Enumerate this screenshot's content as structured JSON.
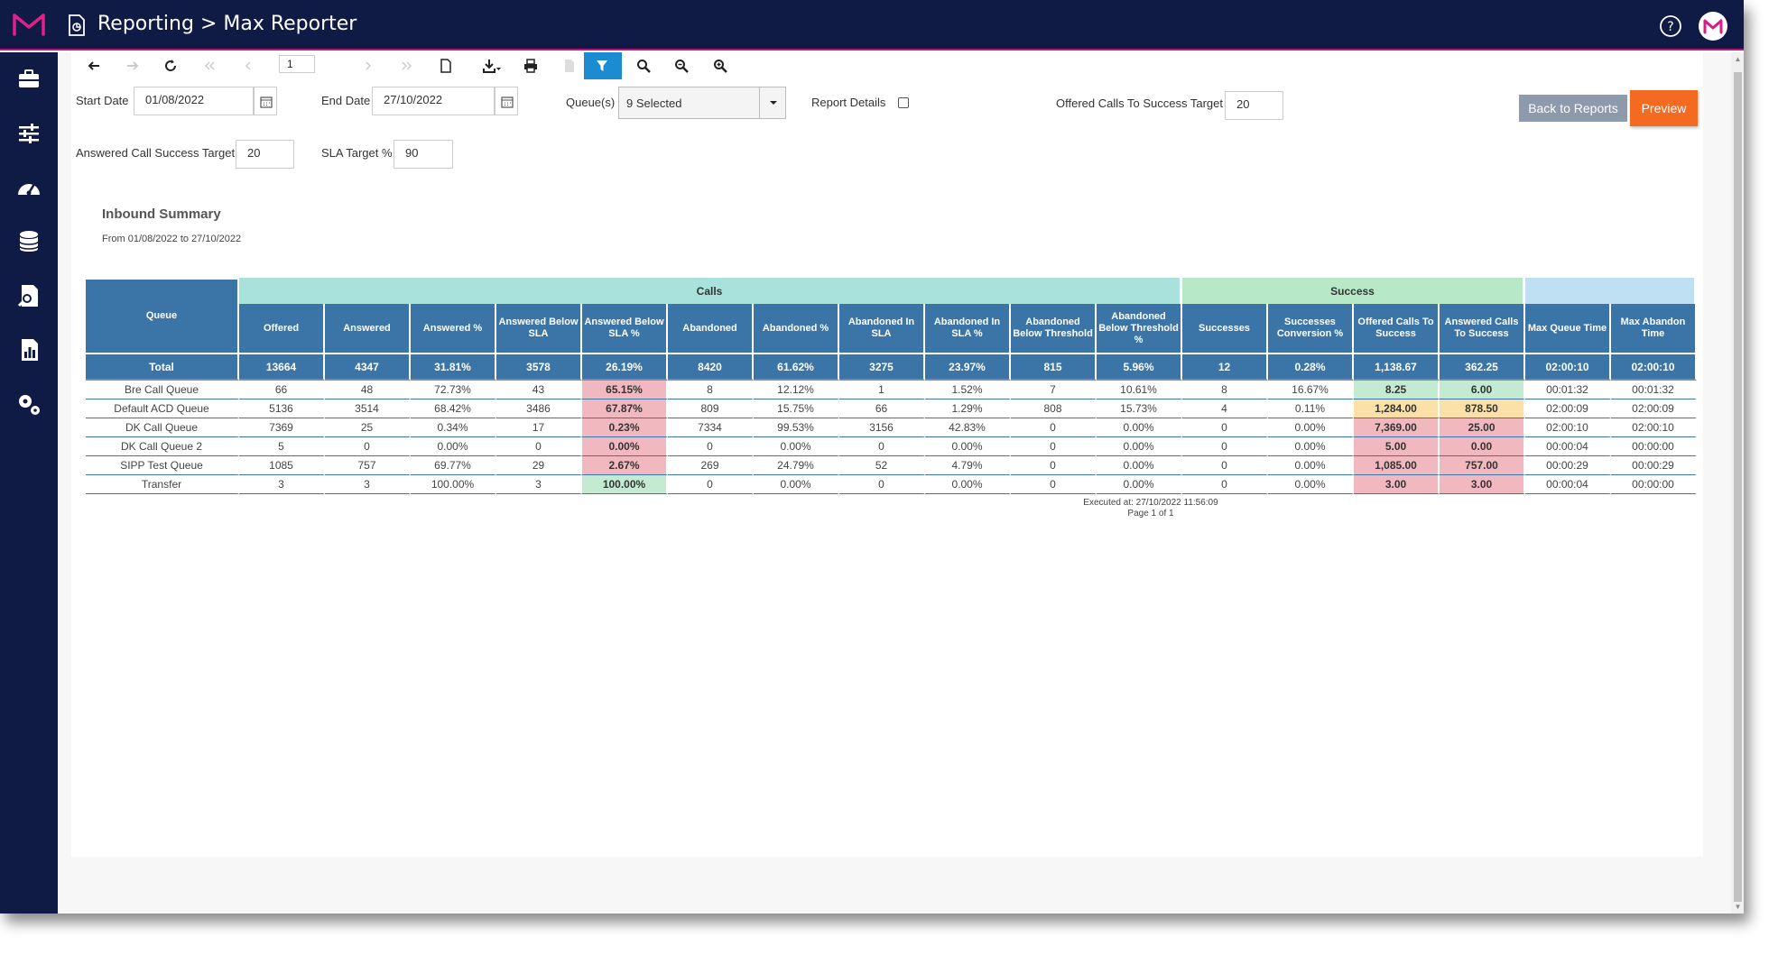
{
  "header": {
    "title": "Reporting > Max Reporter"
  },
  "sidebar": {
    "items": [
      "briefcase-icon",
      "sliders-icon",
      "dashboard-icon",
      "database-icon",
      "report-search-icon",
      "chart-file-icon",
      "settings-icon"
    ]
  },
  "toolbar": {
    "page_number": "1"
  },
  "filters": {
    "start_date_label": "Start Date",
    "start_date": "01/08/2022",
    "end_date_label": "End Date",
    "end_date": "27/10/2022",
    "queues_label": "Queue(s)",
    "queues_value": "9 Selected",
    "report_details_label": "Report Details",
    "offered_target_label": "Offered Calls To Success Target",
    "offered_target": "20",
    "answered_target_label": "Answered Call Success Target",
    "answered_target": "20",
    "sla_target_label": "SLA Target %",
    "sla_target": "90",
    "back_label": "Back to Reports",
    "preview_label": "Preview"
  },
  "report": {
    "title": "Inbound Summary",
    "range": "From 01/08/2022 to 27/10/2022",
    "group_calls": "Calls",
    "group_success": "Success",
    "headers": [
      "Queue",
      "Offered",
      "Answered",
      "Answered %",
      "Answered Below SLA",
      "Answered Below SLA %",
      "Abandoned",
      "Abandoned %",
      "Abandoned In SLA",
      "Abandoned In SLA %",
      "Abandoned Below Threshold",
      "Abandoned Below Threshold %",
      "Successes",
      "Successes Conversion %",
      "Offered Calls To Success",
      "Answered Calls To Success",
      "Max Queue Time",
      "Max Abandon Time"
    ],
    "total": [
      "Total",
      "13664",
      "4347",
      "31.81%",
      "3578",
      "26.19%",
      "8420",
      "61.62%",
      "3275",
      "23.97%",
      "815",
      "5.96%",
      "12",
      "0.28%",
      "1,138.67",
      "362.25",
      "02:00:10",
      "02:00:10"
    ],
    "rows": [
      [
        "Bre Call Queue",
        "66",
        "48",
        "72.73%",
        "43",
        "65.15%",
        "8",
        "12.12%",
        "1",
        "1.52%",
        "7",
        "10.61%",
        "8",
        "16.67%",
        "8.25",
        "6.00",
        "00:01:32",
        "00:01:32"
      ],
      [
        "Default ACD Queue",
        "5136",
        "3514",
        "68.42%",
        "3486",
        "67.87%",
        "809",
        "15.75%",
        "66",
        "1.29%",
        "808",
        "15.73%",
        "4",
        "0.11%",
        "1,284.00",
        "878.50",
        "02:00:09",
        "02:00:09"
      ],
      [
        "DK Call Queue",
        "7369",
        "25",
        "0.34%",
        "17",
        "0.23%",
        "7334",
        "99.53%",
        "3156",
        "42.83%",
        "0",
        "0.00%",
        "0",
        "0.00%",
        "7,369.00",
        "25.00",
        "02:00:10",
        "02:00:10"
      ],
      [
        "DK Call Queue 2",
        "5",
        "0",
        "0.00%",
        "0",
        "0.00%",
        "0",
        "0.00%",
        "0",
        "0.00%",
        "0",
        "0.00%",
        "0",
        "0.00%",
        "5.00",
        "0.00",
        "00:00:04",
        "00:00:00"
      ],
      [
        "SIPP Test Queue",
        "1085",
        "757",
        "69.77%",
        "29",
        "2.67%",
        "269",
        "24.79%",
        "52",
        "4.79%",
        "0",
        "0.00%",
        "0",
        "0.00%",
        "1,085.00",
        "757.00",
        "00:00:29",
        "00:00:29"
      ],
      [
        "Transfer",
        "3",
        "3",
        "100.00%",
        "3",
        "100.00%",
        "0",
        "0.00%",
        "0",
        "0.00%",
        "0",
        "0.00%",
        "0",
        "0.00%",
        "3.00",
        "3.00",
        "00:00:04",
        "00:00:00"
      ]
    ],
    "highlights": [
      {
        "5": "red",
        "14": "green",
        "15": "green"
      },
      {
        "5": "red",
        "14": "yellow",
        "15": "yellow"
      },
      {
        "5": "red",
        "14": "red",
        "15": "red"
      },
      {
        "5": "red",
        "14": "red",
        "15": "red"
      },
      {
        "5": "red",
        "14": "red",
        "15": "red"
      },
      {
        "5": "green",
        "14": "red",
        "15": "red"
      }
    ],
    "executed": "Executed at: 27/10/2022 11:56:09",
    "page": "Page 1 of 1"
  },
  "colors": {
    "topbar": "#101b45",
    "accent": "#c2127f",
    "header_blue": "#3b75a8",
    "calls_group": "#a9e2dd",
    "success_group": "#b7e9c8",
    "preview": "#f36a20"
  }
}
